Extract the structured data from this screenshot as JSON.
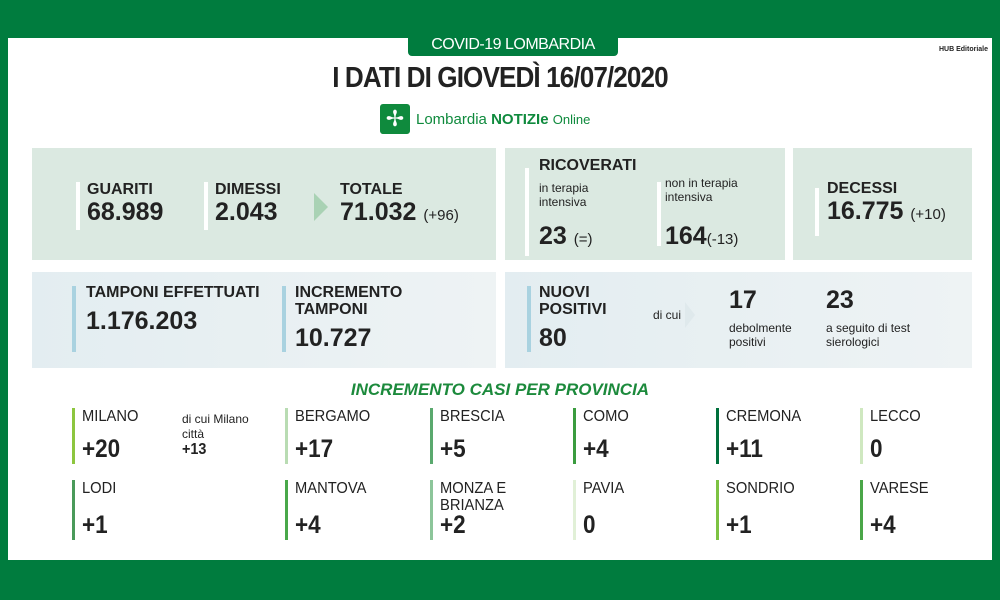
{
  "header": {
    "tag": "COVID-19 LOMBARDIA",
    "publisher": "HUB Editoriale",
    "title": "I DATI DI GIOVEDÌ 16/07/2020",
    "logo": {
      "icon": "lombardia-rose-icon",
      "text_a": "Lombardia",
      "text_b": "NOTIZIe",
      "text_c": "Online"
    }
  },
  "colors": {
    "brand_green": "#007c3e",
    "panel_green": "#dbe9e1",
    "panel_blue": "#e3edf1"
  },
  "guariti": {
    "label": "GUARITI",
    "value": "68.989"
  },
  "dimessi": {
    "label": "DIMESSI",
    "value": "2.043"
  },
  "totale": {
    "label": "TOTALE",
    "value": "71.032",
    "delta": "(+96)"
  },
  "ricoverati": {
    "label": "RICOVERATI",
    "intensiva": {
      "label": "in terapia intensiva",
      "value": "23",
      "delta": "(=)"
    },
    "non_intensiva": {
      "label": "non in terapia intensiva",
      "value": "164",
      "delta": "(-13)"
    }
  },
  "decessi": {
    "label": "DECESSI",
    "value": "16.775",
    "delta": "(+10)"
  },
  "tamponi": {
    "label": "TAMPONI EFFETTUATI",
    "value": "1.176.203"
  },
  "incremento_tamponi": {
    "label": "INCREMENTO TAMPONI",
    "value": "10.727"
  },
  "nuovi_positivi": {
    "label": "NUOVI POSITIVI",
    "value": "80",
    "di_cui": "di cui",
    "debolmente": {
      "value": "17",
      "label": "debolmente positivi"
    },
    "sierologici": {
      "value": "23",
      "label": "a seguito di test sierologici"
    }
  },
  "province": {
    "title": "INCREMENTO CASI PER PROVINCIA",
    "milano_citta": {
      "label": "di cui Milano città",
      "value": "+13"
    },
    "items": [
      {
        "name": "MILANO",
        "value": "+20",
        "color": "#8dc63f"
      },
      {
        "name": "BERGAMO",
        "value": "+17",
        "color": "#b9dcb3"
      },
      {
        "name": "BRESCIA",
        "value": "+5",
        "color": "#5aa96e"
      },
      {
        "name": "COMO",
        "value": "+4",
        "color": "#3b9c3f"
      },
      {
        "name": "CREMONA",
        "value": "+11",
        "color": "#00703c"
      },
      {
        "name": "LECCO",
        "value": "0",
        "color": "#cfe8c0"
      },
      {
        "name": "LODI",
        "value": "+1",
        "color": "#4a9a5a"
      },
      {
        "name": "MANTOVA",
        "value": "+4",
        "color": "#49a84a"
      },
      {
        "name": "MONZA E BRIANZA",
        "value": "+2",
        "color": "#8cc59a"
      },
      {
        "name": "PAVIA",
        "value": "0",
        "color": "#e1f0d7"
      },
      {
        "name": "SONDRIO",
        "value": "+1",
        "color": "#7cc242"
      },
      {
        "name": "VARESE",
        "value": "+4",
        "color": "#4aa648"
      }
    ]
  }
}
